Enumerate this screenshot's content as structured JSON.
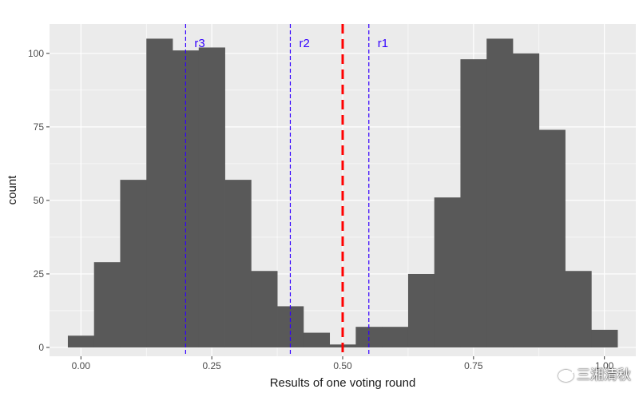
{
  "chart_data": {
    "type": "histogram",
    "xlabel": "Results of one voting round",
    "ylabel": "count",
    "xlim": [
      -0.06,
      1.06
    ],
    "ylim": [
      -3,
      110
    ],
    "x_ticks": [
      0.0,
      0.25,
      0.5,
      0.75,
      1.0
    ],
    "x_tick_labels": [
      "0.00",
      "0.25",
      "0.50",
      "0.75",
      "1.00"
    ],
    "y_ticks": [
      0,
      25,
      50,
      75,
      100
    ],
    "y_tick_labels": [
      "0",
      "25",
      "50",
      "75",
      "100"
    ],
    "bin_width": 0.05,
    "bins": [
      {
        "x_start": -0.025,
        "x_end": 0.025,
        "count": 4
      },
      {
        "x_start": 0.025,
        "x_end": 0.075,
        "count": 29
      },
      {
        "x_start": 0.075,
        "x_end": 0.125,
        "count": 57
      },
      {
        "x_start": 0.125,
        "x_end": 0.175,
        "count": 105
      },
      {
        "x_start": 0.175,
        "x_end": 0.225,
        "count": 101
      },
      {
        "x_start": 0.225,
        "x_end": 0.275,
        "count": 102
      },
      {
        "x_start": 0.275,
        "x_end": 0.325,
        "count": 57
      },
      {
        "x_start": 0.325,
        "x_end": 0.375,
        "count": 26
      },
      {
        "x_start": 0.375,
        "x_end": 0.425,
        "count": 14
      },
      {
        "x_start": 0.425,
        "x_end": 0.475,
        "count": 5
      },
      {
        "x_start": 0.475,
        "x_end": 0.525,
        "count": 1
      },
      {
        "x_start": 0.525,
        "x_end": 0.575,
        "count": 7
      },
      {
        "x_start": 0.575,
        "x_end": 0.625,
        "count": 7
      },
      {
        "x_start": 0.625,
        "x_end": 0.675,
        "count": 25
      },
      {
        "x_start": 0.675,
        "x_end": 0.725,
        "count": 51
      },
      {
        "x_start": 0.725,
        "x_end": 0.775,
        "count": 98
      },
      {
        "x_start": 0.775,
        "x_end": 0.825,
        "count": 105
      },
      {
        "x_start": 0.825,
        "x_end": 0.875,
        "count": 100
      },
      {
        "x_start": 0.875,
        "x_end": 0.925,
        "count": 74
      },
      {
        "x_start": 0.925,
        "x_end": 0.975,
        "count": 26
      },
      {
        "x_start": 0.975,
        "x_end": 1.025,
        "count": 6
      }
    ],
    "reference_lines": [
      {
        "x": 0.2,
        "label": "r3",
        "color": "#3300ff",
        "style": "dashed"
      },
      {
        "x": 0.4,
        "label": "r2",
        "color": "#3300ff",
        "style": "dashed"
      },
      {
        "x": 0.55,
        "label": "r1",
        "color": "#3300ff",
        "style": "dashed"
      },
      {
        "x": 0.5,
        "label": "",
        "color": "#ff0000",
        "style": "thick-dashed"
      }
    ],
    "bar_color": "#595959",
    "panel_color": "#ebebeb",
    "grid": true
  },
  "watermark": {
    "text": "三湘清秋"
  }
}
